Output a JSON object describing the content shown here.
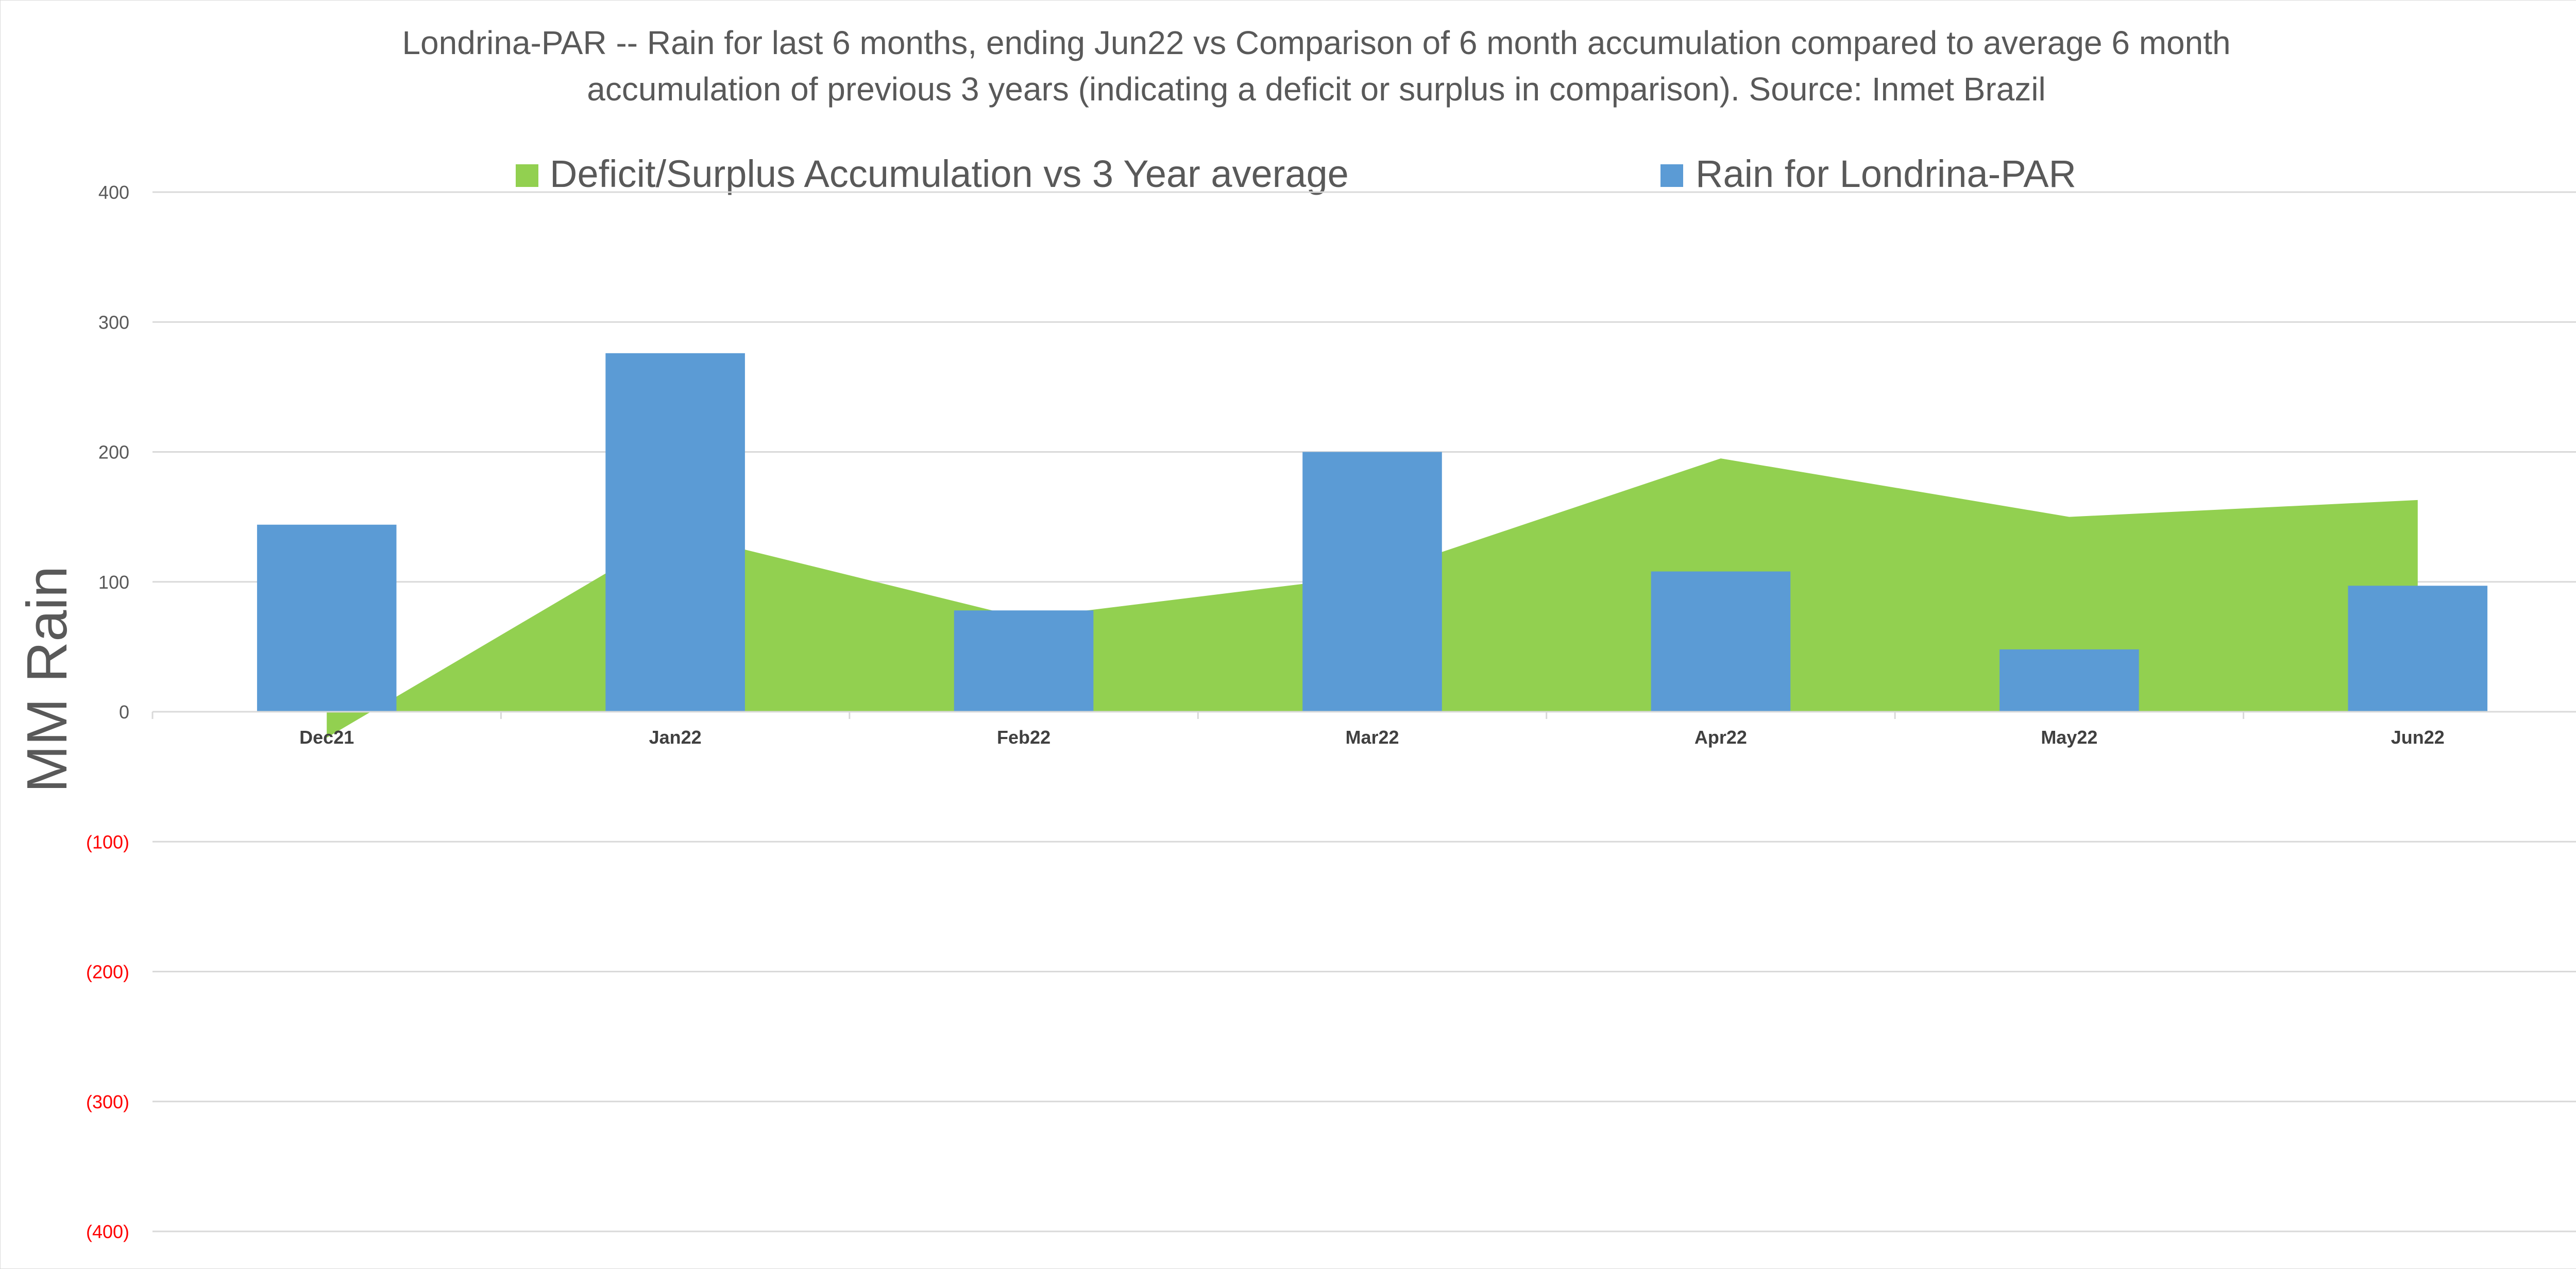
{
  "chart_data": {
    "type": "bar",
    "title_lines": [
      "Londrina-PAR -- Rain for last 6 months, ending Jun22  vs Comparison of 6 month accumulation compared to average 6 month",
      "accumulation of previous 3 years  (indicating a deficit or surplus in comparison). Source: Inmet Brazil"
    ],
    "ylabel": "MM Rain",
    "xlabel": "",
    "categories": [
      "Dec21",
      "Jan22",
      "Feb22",
      "Mar22",
      "Apr22",
      "May22",
      "Jun22"
    ],
    "ylim": [
      -400,
      400
    ],
    "yticks": [
      400,
      300,
      200,
      100,
      0,
      -100,
      -200,
      -300,
      -400
    ],
    "ytick_labels": [
      "400",
      "300",
      "200",
      "100",
      "0",
      "(100)",
      "(200)",
      "(300)",
      "(400)"
    ],
    "negative_tick_color": "#ff0000",
    "positive_tick_color": "#595959",
    "grid": true,
    "legend_position": "top",
    "series": [
      {
        "name": "Deficit/Surplus Accumulation vs 3 Year average",
        "type": "area",
        "color": "#92d050",
        "values": [
          -20,
          138,
          72,
          105,
          195,
          150,
          163
        ]
      },
      {
        "name": "Rain for Londrina-PAR",
        "type": "bar",
        "color": "#5b9bd5",
        "values": [
          144,
          276,
          78,
          200,
          108,
          48,
          97
        ]
      }
    ]
  }
}
